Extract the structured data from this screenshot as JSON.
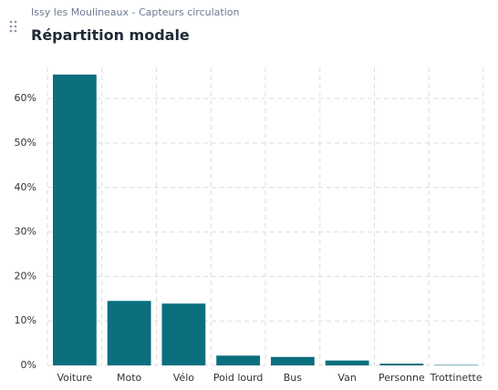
{
  "header": {
    "subtitle": "Issy les Moulineaux - Capteurs circulation"
  },
  "chart_data": {
    "type": "bar",
    "title": "Répartition modale",
    "categories": [
      "Voiture",
      "Moto",
      "Vélo",
      "Poid lourd",
      "Bus",
      "Van",
      "Personne",
      "Trottinette"
    ],
    "values": [
      65.4,
      14.5,
      13.9,
      2.2,
      1.9,
      1.1,
      0.4,
      0.1
    ],
    "color": "#0b6f7e",
    "ylim": [
      0,
      67
    ],
    "yticks": [
      {
        "value": 0,
        "label": "0%"
      },
      {
        "value": 10,
        "label": "10%"
      },
      {
        "value": 20,
        "label": "20%"
      },
      {
        "value": 30,
        "label": "30%"
      },
      {
        "value": 40,
        "label": "40%"
      },
      {
        "value": 50,
        "label": "50%"
      },
      {
        "value": 60,
        "label": "60%"
      }
    ],
    "grid": true
  }
}
